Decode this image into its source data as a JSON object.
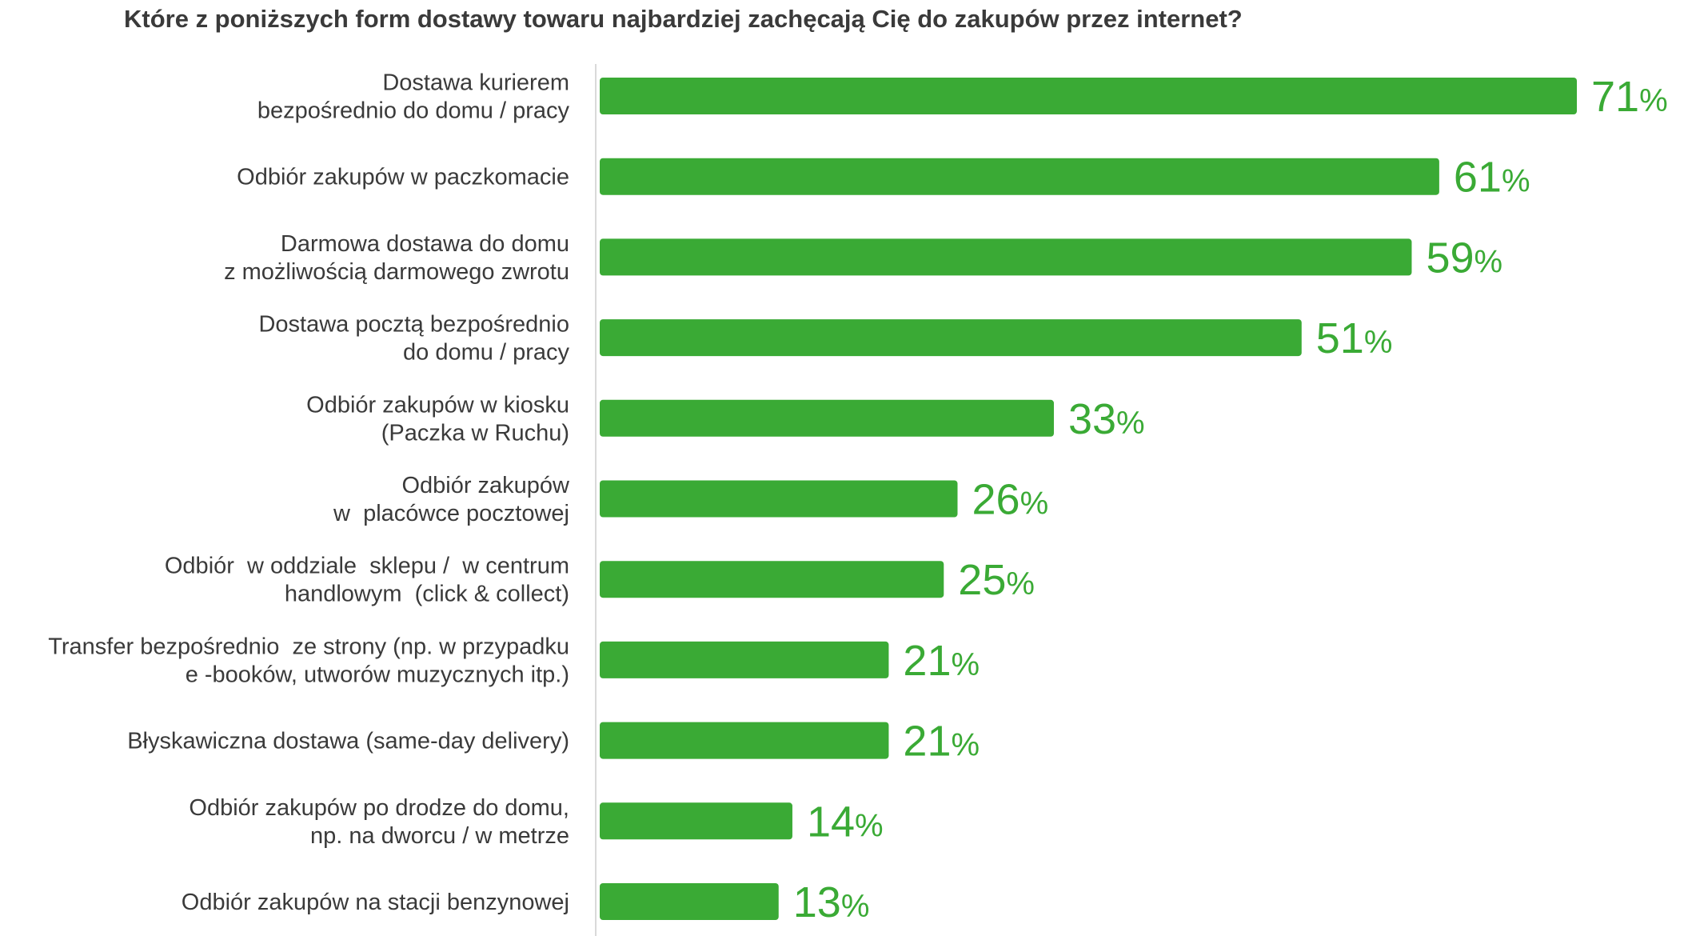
{
  "chart_data": {
    "type": "bar",
    "orientation": "horizontal",
    "title": "Które z poniższych form dostawy towaru najbardziej zachęcają Cię do zakupów przez internet?",
    "categories": [
      [
        "Dostawa kurierem",
        "bezpośrednio do domu / pracy"
      ],
      [
        "Odbiór zakupów w paczkomacie"
      ],
      [
        "Darmowa dostawa do domu",
        "z możliwością darmowego zwrotu"
      ],
      [
        "Dostawa pocztą bezpośrednio",
        "do domu / pracy"
      ],
      [
        "Odbiór zakupów w kiosku",
        "(Paczka w Ruchu)"
      ],
      [
        "Odbiór zakupów",
        "w  placówce pocztowej"
      ],
      [
        "Odbiór  w oddziale  sklepu /  w centrum",
        "handlowym  (click & collect)"
      ],
      [
        "Transfer bezpośrednio  ze strony (np. w przypadku",
        "e -booków, utworów muzycznych itp.)"
      ],
      [
        "Błyskawiczna dostawa (same-day delivery)"
      ],
      [
        "Odbiór zakupów po drodze do domu,",
        "np. na dworcu / w metrze"
      ],
      [
        "Odbiór zakupów na stacji benzynowej"
      ]
    ],
    "values": [
      71,
      61,
      59,
      51,
      33,
      26,
      25,
      21,
      21,
      14,
      13
    ],
    "value_suffix": "%",
    "xlim": [
      0,
      71
    ],
    "bar_color": "#3aaa35",
    "label_color": "#3aaa35",
    "text_color": "#3a3a3a",
    "axis_color": "#d9d9d9",
    "grid": false,
    "legend": "none"
  }
}
